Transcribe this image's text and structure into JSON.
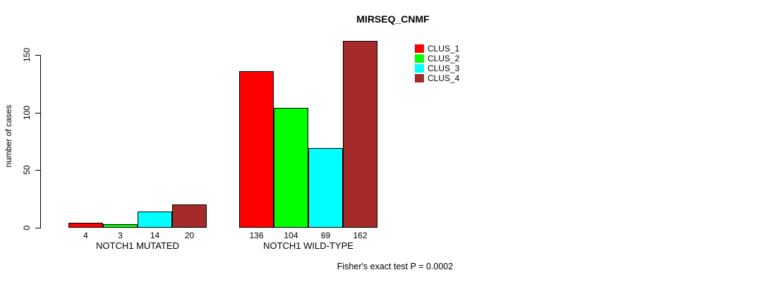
{
  "chart_data": {
    "type": "bar",
    "title": "MIRSEQ_CNMF",
    "ylabel": "number of cases",
    "xlabel": "",
    "yticks": [
      0,
      50,
      100,
      150
    ],
    "ylim": [
      0,
      165
    ],
    "grid": false,
    "legend_position": "top-right",
    "categories": [
      "NOTCH1 MUTATED",
      "NOTCH1 WILD-TYPE"
    ],
    "series": [
      {
        "name": "CLUS_1",
        "color": "#ff0000",
        "values": [
          4,
          136
        ]
      },
      {
        "name": "CLUS_2",
        "color": "#00ff00",
        "values": [
          3,
          104
        ]
      },
      {
        "name": "CLUS_3",
        "color": "#00ffff",
        "values": [
          14,
          69
        ]
      },
      {
        "name": "CLUS_4",
        "color": "#a52a2a",
        "values": [
          20,
          162
        ]
      }
    ],
    "bar_value_labels": [
      [
        "4",
        "3",
        "14",
        "20"
      ],
      [
        "136",
        "104",
        "69",
        "162"
      ]
    ],
    "annotation": "Fisher's exact test P = 0.0002"
  }
}
